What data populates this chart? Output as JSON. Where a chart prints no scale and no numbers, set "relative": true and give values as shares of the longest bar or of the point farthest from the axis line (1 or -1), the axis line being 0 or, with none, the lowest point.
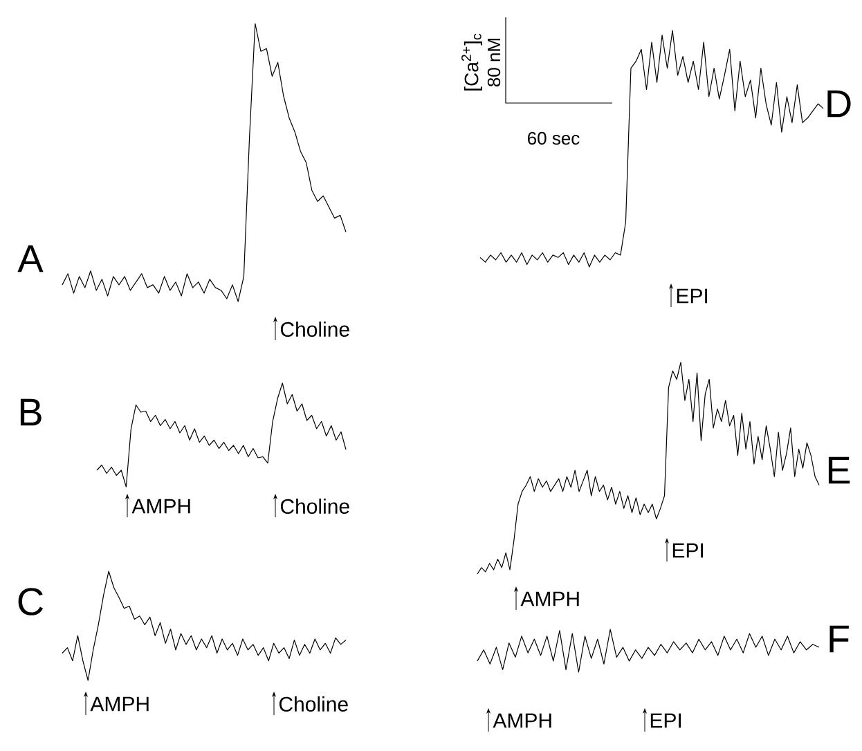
{
  "chart_data": [
    {
      "type": "line",
      "title": "A",
      "relative": true,
      "color": "#000000",
      "categories": [
        null,
        null,
        null,
        null,
        null,
        null,
        null,
        null,
        null,
        null,
        null,
        null,
        null,
        null,
        null,
        null,
        null,
        null,
        null,
        null,
        null,
        null,
        null,
        null,
        null,
        null,
        null,
        null,
        null,
        null,
        null,
        null,
        null,
        null,
        null,
        null,
        null,
        null,
        null,
        null,
        null,
        null,
        null,
        null,
        null,
        null,
        null,
        null,
        null,
        null,
        null
      ],
      "values": [
        0.06,
        0.1,
        0.03,
        0.09,
        0.05,
        0.11,
        0.04,
        0.08,
        0.02,
        0.09,
        0.06,
        0.09,
        0.04,
        0.07,
        0.1,
        0.05,
        0.06,
        0.03,
        0.09,
        0.04,
        0.07,
        0.02,
        0.1,
        0.05,
        0.07,
        0.03,
        0.08,
        0.05,
        0.04,
        0.01,
        0.06,
        0,
        0.09,
        0.59,
        1,
        0.9,
        0.91,
        0.81,
        0.86,
        0.74,
        0.66,
        0.61,
        0.54,
        0.5,
        0.4,
        0.36,
        0.38,
        0.34,
        0.3,
        0.31,
        0.25
      ],
      "annotations": [
        "Choline"
      ]
    },
    {
      "type": "line",
      "title": "B",
      "relative": true,
      "color": "#000000",
      "categories": [
        null,
        null,
        null,
        null,
        null,
        null,
        null,
        null,
        null,
        null,
        null,
        null,
        null,
        null,
        null,
        null,
        null,
        null,
        null,
        null,
        null,
        null,
        null,
        null,
        null,
        null,
        null,
        null,
        null,
        null,
        null,
        null,
        null,
        null,
        null,
        null,
        null,
        null,
        null,
        null,
        null,
        null,
        null,
        null,
        null,
        null,
        null,
        null,
        null,
        null,
        null,
        null
      ],
      "values": [
        0.16,
        0.21,
        0.13,
        0.19,
        0.11,
        0.16,
        0,
        0.56,
        0.79,
        0.72,
        0.73,
        0.63,
        0.69,
        0.59,
        0.65,
        0.56,
        0.63,
        0.52,
        0.59,
        0.45,
        0.56,
        0.43,
        0.49,
        0.4,
        0.45,
        0.37,
        0.43,
        0.35,
        0.4,
        0.32,
        0.4,
        0.29,
        0.37,
        0.28,
        0.29,
        0.23,
        0.63,
        0.85,
        1,
        0.8,
        0.89,
        0.73,
        0.8,
        0.64,
        0.69,
        0.56,
        0.63,
        0.49,
        0.59,
        0.45,
        0.53,
        0.36
      ],
      "annotations": [
        "AMPH",
        "Choline"
      ]
    },
    {
      "type": "line",
      "title": "C",
      "relative": true,
      "color": "#000000",
      "categories": [
        null,
        null,
        null,
        null,
        null,
        null,
        null,
        null,
        null,
        null,
        null,
        null,
        null,
        null,
        null,
        null,
        null,
        null,
        null,
        null,
        null,
        null,
        null,
        null,
        null,
        null,
        null,
        null,
        null,
        null,
        null,
        null,
        null,
        null,
        null,
        null,
        null,
        null,
        null,
        null,
        null,
        null,
        null,
        null,
        null,
        null,
        null,
        null,
        null,
        null,
        null,
        null,
        null,
        null,
        null,
        null
      ],
      "values": [
        0.25,
        0.3,
        0.18,
        0.41,
        0.18,
        0,
        0.28,
        0.51,
        0.78,
        1,
        0.85,
        0.76,
        0.66,
        0.68,
        0.56,
        0.59,
        0.51,
        0.58,
        0.41,
        0.53,
        0.34,
        0.47,
        0.28,
        0.43,
        0.33,
        0.41,
        0.28,
        0.38,
        0.3,
        0.41,
        0.25,
        0.38,
        0.28,
        0.34,
        0.23,
        0.38,
        0.28,
        0.33,
        0.23,
        0.3,
        0.18,
        0.34,
        0.25,
        0.3,
        0.2,
        0.37,
        0.23,
        0.33,
        0.25,
        0.38,
        0.28,
        0.34,
        0.25,
        0.39,
        0.33,
        0.37
      ],
      "annotations": [
        "AMPH",
        "Choline"
      ]
    },
    {
      "type": "line",
      "title": "D",
      "relative": true,
      "color": "#000000",
      "categories": [
        null,
        null,
        null,
        null,
        null,
        null,
        null,
        null,
        null,
        null,
        null,
        null,
        null,
        null,
        null,
        null,
        null,
        null,
        null,
        null,
        null,
        null,
        null,
        null,
        null,
        null,
        null,
        null,
        null,
        null,
        null,
        null,
        null,
        null,
        null,
        null,
        null,
        null,
        null,
        null,
        null,
        null,
        null,
        null,
        null,
        null,
        null,
        null,
        null,
        null,
        null,
        null,
        null,
        null,
        null,
        null,
        null,
        null,
        null,
        null,
        null,
        null,
        null,
        null,
        null,
        null,
        null
      ],
      "values": [
        0.04,
        0.02,
        0.05,
        0.03,
        0.06,
        0.02,
        0.05,
        0.02,
        0.06,
        0.01,
        0.05,
        0.03,
        0.06,
        0.02,
        0.05,
        0.04,
        0.06,
        0.01,
        0.05,
        0.02,
        0.06,
        0,
        0.05,
        0.02,
        0.05,
        0.03,
        0.06,
        0.05,
        0.19,
        0.84,
        0.87,
        0.92,
        0.75,
        0.95,
        0.78,
        0.98,
        0.84,
        1,
        0.81,
        0.89,
        0.78,
        0.87,
        0.75,
        0.95,
        0.72,
        0.84,
        0.71,
        0.81,
        0.92,
        0.66,
        0.87,
        0.72,
        0.79,
        0.63,
        0.84,
        0.69,
        0.6,
        0.78,
        0.57,
        0.72,
        0.61,
        0.77,
        0.61,
        0.63,
        0.66,
        0.69,
        0.67
      ],
      "annotations": [
        "EPI",
        "[Ca$^{2+}$]$_{c}$",
        "80 nM",
        "60 sec"
      ]
    },
    {
      "type": "line",
      "title": "E",
      "relative": true,
      "color": "#000000",
      "categories": [
        null,
        null,
        null,
        null,
        null,
        null,
        null,
        null,
        null,
        null,
        null,
        null,
        null,
        null,
        null,
        null,
        null,
        null,
        null,
        null,
        null,
        null,
        null,
        null,
        null,
        null,
        null,
        null,
        null,
        null,
        null,
        null,
        null,
        null,
        null,
        null,
        null,
        null,
        null,
        null,
        null,
        null,
        null,
        null,
        null,
        null,
        null,
        null,
        null,
        null,
        null,
        null,
        null,
        null,
        null,
        null,
        null,
        null,
        null,
        null,
        null,
        null,
        null,
        null,
        null,
        null,
        null,
        null,
        null,
        null,
        null,
        null,
        null,
        null,
        null,
        null,
        null,
        null,
        null,
        null,
        null,
        null,
        null,
        null,
        null
      ],
      "values": [
        0,
        0.03,
        0.01,
        0.05,
        0.02,
        0.07,
        0.03,
        0.1,
        0.02,
        0.16,
        0.33,
        0.39,
        0.42,
        0.46,
        0.39,
        0.45,
        0.41,
        0.44,
        0.39,
        0.42,
        0.45,
        0.39,
        0.46,
        0.41,
        0.49,
        0.39,
        0.44,
        0.49,
        0.37,
        0.46,
        0.39,
        0.42,
        0.35,
        0.41,
        0.33,
        0.39,
        0.31,
        0.37,
        0.29,
        0.36,
        0.28,
        0.33,
        0.29,
        0.33,
        0.26,
        0.31,
        0.37,
        0.88,
        0.96,
        0.92,
        1,
        0.82,
        0.92,
        0.72,
        0.95,
        0.63,
        0.85,
        0.92,
        0.69,
        0.78,
        0.72,
        0.82,
        0.7,
        0.75,
        0.56,
        0.76,
        0.59,
        0.72,
        0.52,
        0.65,
        0.54,
        0.7,
        0.59,
        0.46,
        0.67,
        0.49,
        0.57,
        0.69,
        0.46,
        0.59,
        0.5,
        0.62,
        0.56,
        0.46,
        0.42
      ],
      "annotations": [
        "AMPH",
        "EPI"
      ]
    },
    {
      "type": "line",
      "title": "F",
      "relative": true,
      "color": "#000000",
      "categories": [
        null,
        null,
        null,
        null,
        null,
        null,
        null,
        null,
        null,
        null,
        null,
        null,
        null,
        null,
        null,
        null,
        null,
        null,
        null,
        null,
        null,
        null,
        null,
        null,
        null,
        null,
        null,
        null,
        null,
        null,
        null,
        null,
        null,
        null,
        null,
        null,
        null,
        null,
        null,
        null,
        null,
        null,
        null,
        null,
        null,
        null,
        null,
        null,
        null,
        null,
        null,
        null,
        null,
        null,
        null
      ],
      "values": [
        0.26,
        0.52,
        0.19,
        0.58,
        0.06,
        0.68,
        0.35,
        0.84,
        0.45,
        0.77,
        0.39,
        0.84,
        0.26,
        0.97,
        0.06,
        0.9,
        0,
        0.84,
        0.32,
        0.77,
        0.19,
        1,
        0.35,
        0.58,
        0.26,
        0.52,
        0.32,
        0.58,
        0.39,
        0.65,
        0.45,
        0.71,
        0.52,
        0.68,
        0.45,
        0.77,
        0.52,
        0.71,
        0.39,
        0.84,
        0.52,
        0.77,
        0.45,
        0.9,
        0.58,
        0.84,
        0.39,
        0.77,
        0.52,
        0.84,
        0.45,
        0.71,
        0.52,
        0.65,
        0.58
      ],
      "annotations": [
        "AMPH",
        "EPI"
      ]
    }
  ]
}
